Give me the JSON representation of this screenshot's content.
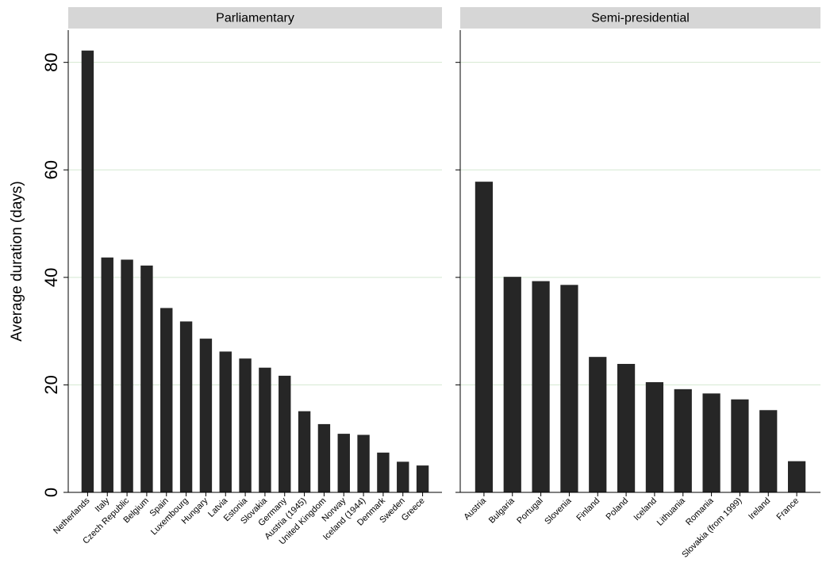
{
  "chart_data": {
    "type": "bar",
    "ylabel": "Average duration (days)",
    "ylim": [
      0,
      86
    ],
    "yticks": [
      0,
      20,
      40,
      60,
      80
    ],
    "grid": true,
    "bar_color": "#262626",
    "grid_color": "#d4e8d0",
    "strip_color": "#d6d6d6",
    "panels": [
      {
        "title": "Parliamentary",
        "categories": [
          "Netherlands",
          "Italy",
          "Czech Republic",
          "Belgium",
          "Spain",
          "Luxembourg",
          "Hungary",
          "Latvia",
          "Estonia",
          "Slovakia",
          "Germany",
          "Austria (1945)",
          "United Kingdom",
          "Norway",
          "Iceland (1944)",
          "Denmark",
          "Sweden",
          "Greece"
        ],
        "values": [
          82.2,
          43.7,
          43.3,
          42.2,
          34.3,
          31.8,
          28.6,
          26.2,
          24.9,
          23.2,
          21.7,
          15.1,
          12.7,
          10.9,
          10.7,
          7.4,
          5.7,
          5.0
        ]
      },
      {
        "title": "Semi-presidential",
        "categories": [
          "Austria",
          "Bulgaria",
          "Portugal",
          "Slovenia",
          "Finland",
          "Poland",
          "Iceland",
          "Lithuania",
          "Romania",
          "Slovakia (from 1999)",
          "Ireland",
          "France"
        ],
        "values": [
          57.8,
          40.1,
          39.3,
          38.6,
          25.2,
          23.9,
          20.5,
          19.2,
          18.4,
          17.3,
          15.3,
          5.8
        ]
      }
    ]
  }
}
